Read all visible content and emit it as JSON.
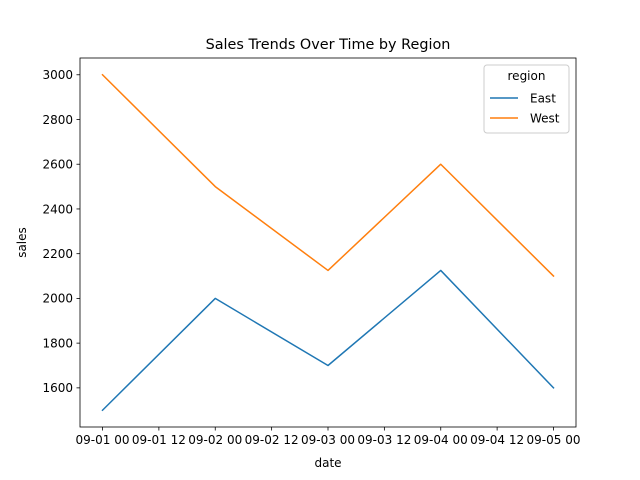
{
  "chart_data": {
    "type": "line",
    "title": "Sales Trends Over Time by Region",
    "xlabel": "date",
    "ylabel": "sales",
    "x": [
      "2023-09-01T00:00",
      "2023-09-02T00:00",
      "2023-09-03T00:00",
      "2023-09-04T00:00",
      "2023-09-05T00:00"
    ],
    "x_tick_labels": [
      "09-01 00",
      "09-01 12",
      "09-02 00",
      "09-02 12",
      "09-03 00",
      "09-03 12",
      "09-04 00",
      "09-04 12",
      "09-05 00"
    ],
    "y_tick_labels": [
      "1600",
      "1800",
      "2000",
      "2200",
      "2400",
      "2600",
      "2800",
      "3000"
    ],
    "y_ticks": [
      1600,
      1800,
      2000,
      2200,
      2400,
      2600,
      2800,
      3000
    ],
    "ylim": [
      1425,
      3075
    ],
    "legend": {
      "title": "region",
      "placement": "upper right"
    },
    "series": [
      {
        "name": "East",
        "color": "#1f77b4",
        "values": [
          1500,
          2000,
          1700,
          2125,
          1600
        ]
      },
      {
        "name": "West",
        "color": "#ff7f0e",
        "values": [
          3000,
          2500,
          2125,
          2600,
          2100
        ]
      }
    ],
    "grid": false
  }
}
